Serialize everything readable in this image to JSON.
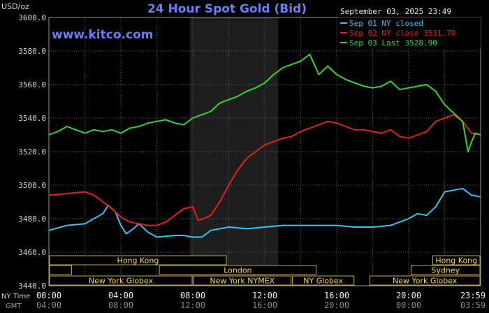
{
  "header": {
    "unit": "USD/oz",
    "title": "24 Hour Spot Gold (Bid)",
    "website": "www.kitco.com",
    "timestamp": "September 03, 2025 23:49"
  },
  "legend": [
    {
      "label": "Sep 01 NY closed",
      "color": "#33c4f0"
    },
    {
      "label": "Sep 02 NY close 3531.70",
      "color": "#e32020"
    },
    {
      "label": "Sep 03 Last 3528.90",
      "color": "#33d633"
    }
  ],
  "sessions": [
    {
      "row": 0,
      "label": "Hong Kong",
      "start": 0,
      "end": 9.9
    },
    {
      "row": 0,
      "label": "Hong Kong",
      "start": 21.3,
      "end": 24
    },
    {
      "row": 1,
      "label": "",
      "start": 0,
      "end": 1.3
    },
    {
      "row": 1,
      "label": "London",
      "start": 6.1,
      "end": 14.9
    },
    {
      "row": 1,
      "label": "Sydney",
      "start": 20.1,
      "end": 24
    },
    {
      "row": 2,
      "label": "New York Globex",
      "start": 0,
      "end": 8.0
    },
    {
      "row": 2,
      "label": "New York NYMEX",
      "start": 8.0,
      "end": 13.5
    },
    {
      "row": 2,
      "label": "NY Globex",
      "start": 13.5,
      "end": 17.0
    },
    {
      "row": 2,
      "label": "New York Globex",
      "start": 17.8,
      "end": 24
    }
  ],
  "x_axis_labels": {
    "ny_title": "NY Time",
    "gmt_title": "GMT",
    "ny": [
      "00:00",
      "04:00",
      "08:00",
      "12:00",
      "16:00",
      "20:00",
      "23:59"
    ],
    "gmt": [
      "04:00",
      "08:00",
      "12:00",
      "16:00",
      "20:00",
      "00:00",
      "03:59"
    ]
  },
  "chart_data": {
    "type": "line",
    "title": "24 Hour Spot Gold (Bid)",
    "ylabel": "USD/oz",
    "ylim": [
      3440,
      3600
    ],
    "xlim": [
      0,
      24
    ],
    "y_ticks": [
      "3440.0",
      "3460.0",
      "3480.0",
      "3500.0",
      "3520.0",
      "3540.0",
      "3560.0",
      "3580.0",
      "3600.0"
    ],
    "shaded_region": [
      7.83,
      12.75
    ],
    "grid": true,
    "series": [
      {
        "name": "Sep 01 NY closed",
        "color": "#33c4f0",
        "x": [
          0,
          1.0,
          2.0,
          2.5,
          3.0,
          3.3,
          3.7,
          4.0,
          4.3,
          4.7,
          5.0,
          5.5,
          6.0,
          7.0,
          7.5,
          8.0,
          8.5,
          9.0,
          10.0,
          11.0,
          12.0,
          13.0,
          14.0,
          15.0,
          16.0,
          17.0,
          18.0,
          19.0,
          19.5,
          20.0,
          20.5,
          21.0,
          21.5,
          22.0,
          22.5,
          23.0,
          23.5,
          24.0
        ],
        "y": [
          3473,
          3476,
          3477,
          3480,
          3483,
          3488,
          3484,
          3476,
          3471,
          3474,
          3477,
          3472,
          3469,
          3470,
          3470,
          3469,
          3469,
          3473,
          3475,
          3474,
          3475,
          3476,
          3476,
          3476,
          3476,
          3475,
          3475,
          3476,
          3478,
          3480,
          3483,
          3482,
          3487,
          3496,
          3497,
          3498,
          3494,
          3493
        ]
      },
      {
        "name": "Sep 02 NY close 3531.70",
        "color": "#e32020",
        "x": [
          0,
          1.0,
          2.0,
          2.5,
          3.0,
          3.5,
          4.0,
          4.5,
          5.0,
          5.5,
          6.0,
          6.5,
          7.0,
          7.5,
          8.0,
          8.3,
          8.6,
          9.0,
          9.5,
          10.0,
          10.5,
          11.0,
          11.5,
          12.0,
          12.5,
          13.0,
          13.5,
          14.0,
          14.5,
          15.0,
          15.5,
          16.0,
          16.5,
          17.0,
          17.5,
          18.0,
          18.5,
          19.0,
          19.5,
          20.0,
          20.5,
          21.0,
          21.5,
          22.0,
          22.5,
          23.0,
          23.5,
          24.0
        ],
        "y": [
          3494,
          3495,
          3496,
          3494,
          3490,
          3486,
          3481,
          3478,
          3477,
          3476,
          3476,
          3478,
          3482,
          3486,
          3487,
          3479,
          3480,
          3482,
          3490,
          3500,
          3509,
          3516,
          3520,
          3524,
          3526,
          3528,
          3529,
          3532,
          3534,
          3536,
          3538,
          3537,
          3535,
          3533,
          3533,
          3532,
          3531,
          3533,
          3529,
          3528,
          3530,
          3532,
          3538,
          3540,
          3542,
          3538,
          3531,
          3530
        ]
      },
      {
        "name": "Sep 03 Last 3528.90",
        "color": "#33d633",
        "x": [
          0,
          0.5,
          1.0,
          1.5,
          2.0,
          2.5,
          3.0,
          3.5,
          4.0,
          4.5,
          5.0,
          5.5,
          6.0,
          6.5,
          7.0,
          7.5,
          8.0,
          8.5,
          9.0,
          9.5,
          10.0,
          10.5,
          11.0,
          11.5,
          12.0,
          12.5,
          13.0,
          13.5,
          14.0,
          14.5,
          15.0,
          15.5,
          16.0,
          16.5,
          17.0,
          17.5,
          18.0,
          18.5,
          19.0,
          19.5,
          20.0,
          20.5,
          21.0,
          21.5,
          22.0,
          22.5,
          23.0,
          23.3,
          23.5,
          23.7,
          24.0
        ],
        "y": [
          3530,
          3532,
          3535,
          3533,
          3531,
          3533,
          3532,
          3533,
          3531,
          3534,
          3535,
          3537,
          3538,
          3539,
          3537,
          3536,
          3540,
          3542,
          3544,
          3549,
          3551,
          3553,
          3556,
          3558,
          3561,
          3566,
          3570,
          3572,
          3574,
          3578,
          3566,
          3571,
          3566,
          3563,
          3561,
          3559,
          3558,
          3559,
          3562,
          3557,
          3558,
          3559,
          3560,
          3556,
          3548,
          3543,
          3538,
          3520,
          3526,
          3531,
          3530
        ]
      }
    ]
  }
}
